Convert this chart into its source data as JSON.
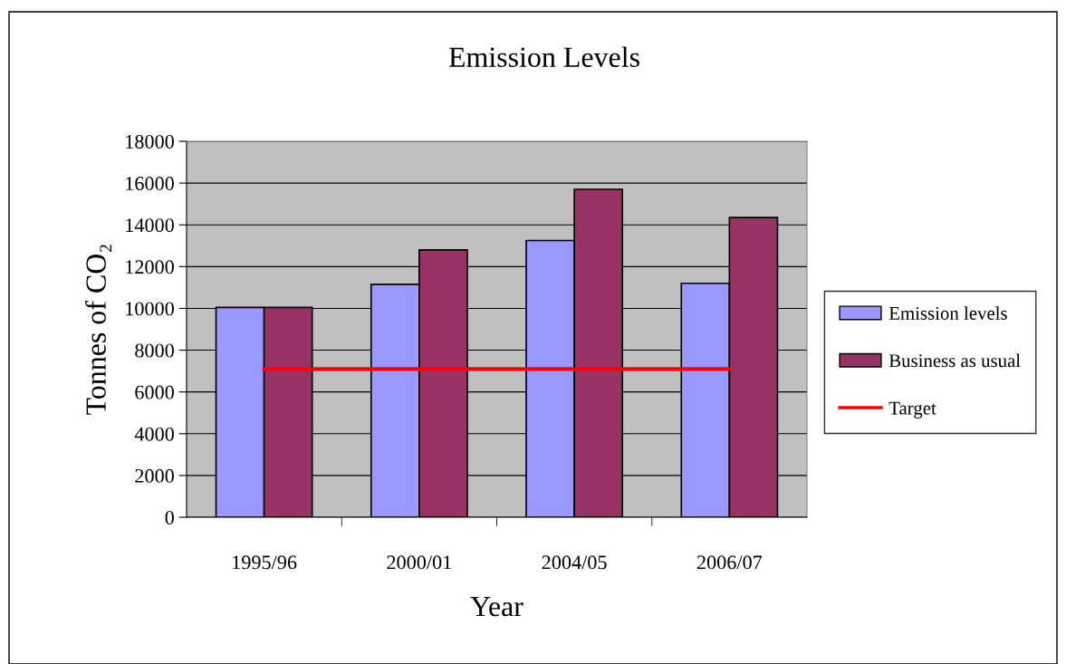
{
  "chart_data": {
    "type": "bar",
    "title": "Emission Levels",
    "xlabel": "Year",
    "ylabel": "Tonnes of CO₂",
    "categories": [
      "1995/96",
      "2000/01",
      "2004/05",
      "2006/07"
    ],
    "series": [
      {
        "name": "Emission levels",
        "color": "#9999ff",
        "values": [
          10050,
          11150,
          13250,
          11200
        ]
      },
      {
        "name": "Business as usual",
        "color": "#993366",
        "values": [
          10050,
          12800,
          15700,
          14350
        ]
      },
      {
        "name": "Target",
        "type": "line",
        "color": "#ff0000",
        "values": [
          7100,
          7100,
          7100,
          7100
        ]
      }
    ],
    "ylim": [
      0,
      18000
    ],
    "yticks": [
      0,
      2000,
      4000,
      6000,
      8000,
      10000,
      12000,
      14000,
      16000,
      18000
    ],
    "grid": "y",
    "legend": "right",
    "marker": "none",
    "line_style": "solid"
  }
}
